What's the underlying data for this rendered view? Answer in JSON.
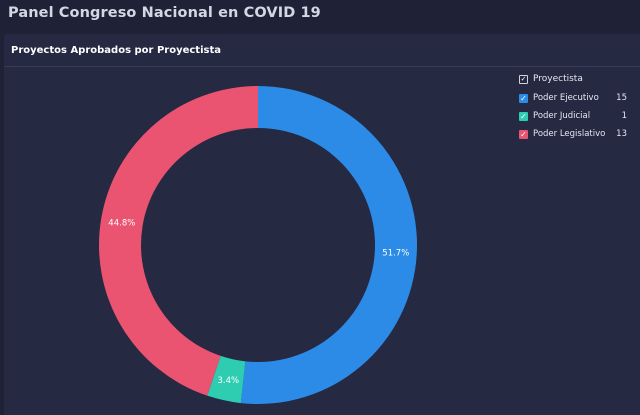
{
  "app": {
    "title": "Panel Congreso Nacional en COVID 19"
  },
  "panel": {
    "title": "Proyectos Aprobados por Proyectista"
  },
  "legend": {
    "header": "Proyectista",
    "items": [
      {
        "label": "Poder Ejecutivo",
        "value": "15",
        "color": "#2b8be6"
      },
      {
        "label": "Poder Judicial",
        "value": "1",
        "color": "#2ecdb1"
      },
      {
        "label": "Poder Legislativo",
        "value": "13",
        "color": "#ea5471"
      }
    ]
  },
  "chart_data": {
    "type": "pie",
    "style": "donut",
    "title": "Proyectos Aprobados por Proyectista",
    "legend_title": "Proyectista",
    "legend_position": "top-right",
    "categories": [
      "Poder Ejecutivo",
      "Poder Judicial",
      "Poder Legislativo"
    ],
    "values": [
      15,
      1,
      13
    ],
    "percent_labels": [
      "51.7%",
      "3.4%",
      "44.8%"
    ],
    "colors": [
      "#2b8be6",
      "#2ecdb1",
      "#ea5471"
    ]
  }
}
